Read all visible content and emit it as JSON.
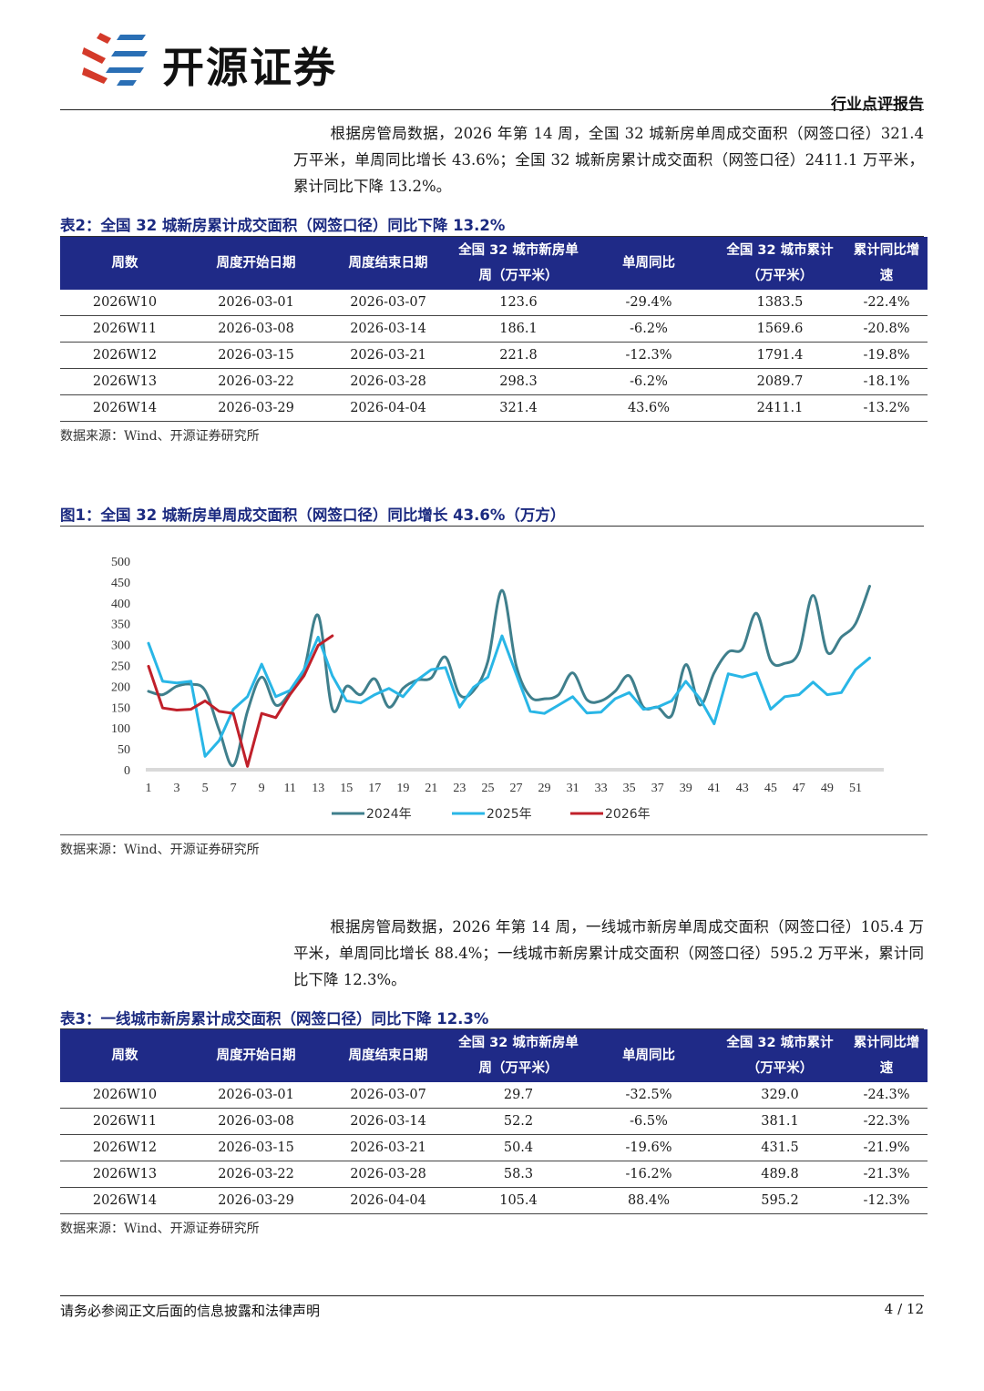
{
  "header": {
    "brand": "开源证券",
    "report_type": "行业点评报告"
  },
  "para1": "根据房管局数据，2026 年第 14 周，全国 32 城新房单周成交面积（网签口径）321.4 万平米，单周同比增长 43.6%；全国 32 城新房累计成交面积（网签口径）2411.1 万平米，累计同比下降 13.2%。",
  "table2": {
    "caption": "表2：全国 32 城新房累计成交面积（网签口径）同比下降 13.2%",
    "headers": [
      "周数",
      "周度开始日期",
      "周度结束日期",
      "全国 32 城市新房单周（万平米）",
      "单周同比",
      "全国 32 城市累计（万平米）",
      "累计同比增速"
    ],
    "rows": [
      [
        "2026W10",
        "2026-03-01",
        "2026-03-07",
        "123.6",
        "-29.4%",
        "1383.5",
        "-22.4%"
      ],
      [
        "2026W11",
        "2026-03-08",
        "2026-03-14",
        "186.1",
        "-6.2%",
        "1569.6",
        "-20.8%"
      ],
      [
        "2026W12",
        "2026-03-15",
        "2026-03-21",
        "221.8",
        "-12.3%",
        "1791.4",
        "-19.8%"
      ],
      [
        "2026W13",
        "2026-03-22",
        "2026-03-28",
        "298.3",
        "-6.2%",
        "2089.7",
        "-18.1%"
      ],
      [
        "2026W14",
        "2026-03-29",
        "2026-04-04",
        "321.4",
        "43.6%",
        "2411.1",
        "-13.2%"
      ]
    ],
    "source": "数据来源：Wind、开源证券研究所"
  },
  "figure1": {
    "caption": "图1：全国 32 城新房单周成交面积（网签口径）同比增长 43.6%（万方）",
    "source": "数据来源：Wind、开源证券研究所"
  },
  "chart_data": {
    "type": "line",
    "title": "",
    "xlabel": "",
    "ylabel": "",
    "ylim": [
      0,
      500
    ],
    "yticks": [
      0,
      50,
      100,
      150,
      200,
      250,
      300,
      350,
      400,
      450,
      500
    ],
    "xticks": [
      1,
      3,
      5,
      7,
      9,
      11,
      13,
      15,
      17,
      19,
      21,
      23,
      25,
      27,
      29,
      31,
      33,
      35,
      37,
      39,
      41,
      43,
      45,
      47,
      49,
      51
    ],
    "xlim": [
      1,
      53
    ],
    "grid": false,
    "legend": "bottom",
    "series": [
      {
        "name": "2024年",
        "color": "#3f7f8c",
        "x": [
          1,
          2,
          3,
          4,
          5,
          6,
          7,
          8,
          9,
          10,
          11,
          12,
          13,
          14,
          15,
          16,
          17,
          18,
          19,
          20,
          21,
          22,
          23,
          24,
          25,
          26,
          27,
          28,
          29,
          30,
          31,
          32,
          33,
          34,
          35,
          36,
          37,
          38,
          39,
          40,
          41,
          42,
          43,
          44,
          45,
          46,
          47,
          48,
          49,
          50,
          51,
          52
        ],
        "values": [
          188,
          180,
          200,
          205,
          190,
          95,
          10,
          140,
          222,
          155,
          185,
          240,
          370,
          145,
          200,
          180,
          218,
          150,
          195,
          215,
          220,
          270,
          180,
          190,
          260,
          430,
          250,
          175,
          170,
          180,
          232,
          168,
          165,
          188,
          225,
          150,
          150,
          130,
          252,
          155,
          232,
          282,
          290,
          375,
          262,
          255,
          282,
          418,
          282,
          318,
          350,
          440
        ]
      },
      {
        "name": "2025年",
        "color": "#29b6e6",
        "x": [
          1,
          2,
          3,
          4,
          5,
          6,
          7,
          8,
          9,
          10,
          11,
          12,
          13,
          14,
          15,
          16,
          17,
          18,
          19,
          20,
          21,
          22,
          23,
          24,
          25,
          26,
          27,
          28,
          29,
          30,
          31,
          32,
          33,
          34,
          35,
          36,
          37,
          38,
          39,
          40,
          41,
          42,
          43,
          44,
          45,
          46,
          47,
          48,
          49,
          50,
          51,
          52
        ],
        "values": [
          303,
          212,
          208,
          212,
          32,
          70,
          145,
          175,
          253,
          175,
          190,
          240,
          318,
          225,
          165,
          160,
          180,
          195,
          175,
          215,
          240,
          245,
          150,
          198,
          222,
          321,
          230,
          140,
          135,
          155,
          175,
          136,
          138,
          170,
          185,
          145,
          150,
          165,
          212,
          170,
          110,
          230,
          222,
          232,
          145,
          175,
          180,
          210,
          180,
          185,
          240,
          268
        ]
      },
      {
        "name": "2026年",
        "color": "#c0202a",
        "x": [
          1,
          2,
          3,
          4,
          5,
          6,
          7,
          8,
          9,
          10,
          11,
          12,
          13,
          14
        ],
        "values": [
          248,
          148,
          143,
          145,
          165,
          140,
          135,
          8,
          135,
          125,
          180,
          225,
          298,
          321
        ]
      }
    ]
  },
  "para2": "根据房管局数据，2026 年第 14 周，一线城市新房单周成交面积（网签口径）105.4 万平米，单周同比增长 88.4%；一线城市新房累计成交面积（网签口径）595.2 万平米，累计同比下降 12.3%。",
  "table3": {
    "caption": "表3：一线城市新房累计成交面积（网签口径）同比下降 12.3%",
    "headers": [
      "周数",
      "周度开始日期",
      "周度结束日期",
      "全国 32 城市新房单周（万平米）",
      "单周同比",
      "全国 32 城市累计（万平米）",
      "累计同比增速"
    ],
    "rows": [
      [
        "2026W10",
        "2026-03-01",
        "2026-03-07",
        "29.7",
        "-32.5%",
        "329.0",
        "-24.3%"
      ],
      [
        "2026W11",
        "2026-03-08",
        "2026-03-14",
        "52.2",
        "-6.5%",
        "381.1",
        "-22.3%"
      ],
      [
        "2026W12",
        "2026-03-15",
        "2026-03-21",
        "50.4",
        "-19.6%",
        "431.5",
        "-21.9%"
      ],
      [
        "2026W13",
        "2026-03-22",
        "2026-03-28",
        "58.3",
        "-16.2%",
        "489.8",
        "-21.3%"
      ],
      [
        "2026W14",
        "2026-03-29",
        "2026-04-04",
        "105.4",
        "88.4%",
        "595.2",
        "-12.3%"
      ]
    ],
    "source": "数据来源：Wind、开源证券研究所"
  },
  "footer": {
    "disclaimer": "请务必参阅正文后面的信息披露和法律声明",
    "page": "4 / 12"
  }
}
